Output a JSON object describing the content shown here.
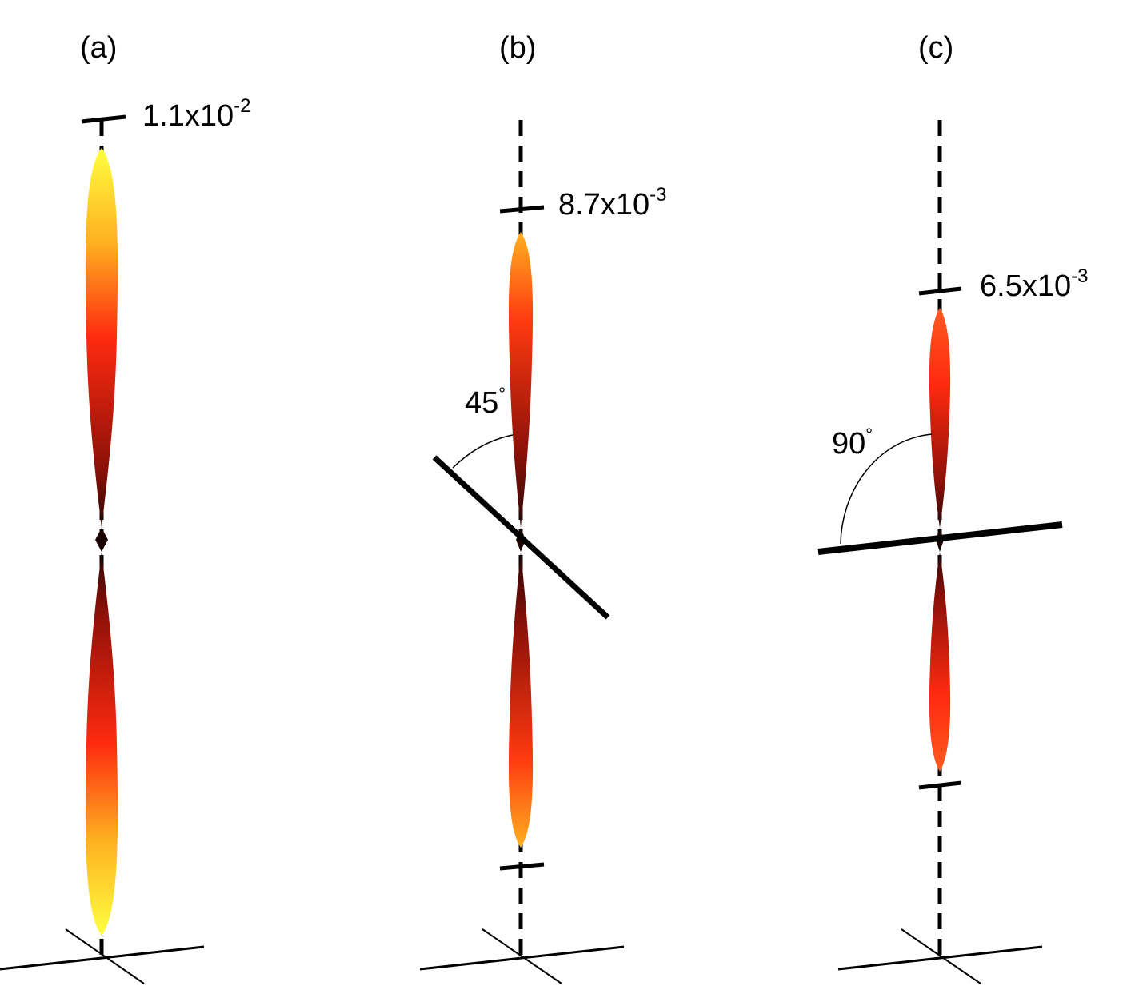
{
  "panels": [
    {
      "label": "(a)",
      "scale": {
        "mantissa": "1.1x10",
        "exponent": "-2"
      },
      "angle": null
    },
    {
      "label": "(b)",
      "scale": {
        "mantissa": "8.7x10",
        "exponent": "-3"
      },
      "angle": {
        "value": "45",
        "unit": "°"
      }
    },
    {
      "label": "(c)",
      "scale": {
        "mantissa": "6.5x10",
        "exponent": "-3"
      },
      "angle": {
        "value": "90",
        "unit": "°"
      }
    }
  ],
  "colors": {
    "lobe_tip": "#ffff33",
    "lobe_mid": "#ff2a10",
    "lobe_center": "#3a0a06",
    "lines": "#000000"
  }
}
